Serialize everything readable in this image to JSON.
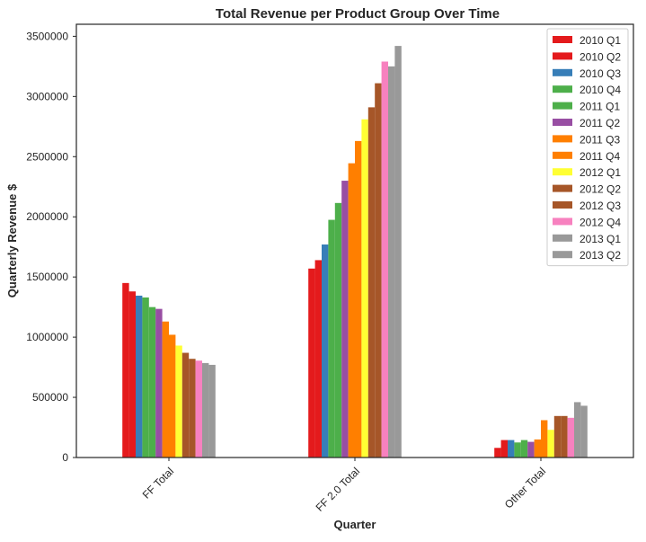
{
  "chart_data": {
    "type": "bar",
    "title": "Total Revenue per Product Group Over Time",
    "xlabel": "Quarter",
    "ylabel": "Quarterly Revenue $",
    "ylim": [
      0,
      3600000
    ],
    "yticks": [
      0,
      500000,
      1000000,
      1500000,
      2000000,
      2500000,
      3000000,
      3500000
    ],
    "yticklabels": [
      "0",
      "500000",
      "1000000",
      "1500000",
      "2000000",
      "2500000",
      "3000000",
      "3500000"
    ],
    "categories": [
      "FF Total",
      "FF 2.0 Total",
      "Other Total"
    ],
    "grid": false,
    "legend_position": "top-right",
    "series": [
      {
        "name": "2010 Q1",
        "color": "#e41a1c",
        "values": [
          1450000,
          1570000,
          80000
        ]
      },
      {
        "name": "2010 Q2",
        "color": "#e41a1c",
        "values": [
          1380000,
          1640000,
          145000
        ]
      },
      {
        "name": "2010 Q3",
        "color": "#377eb8",
        "values": [
          1345000,
          1770000,
          145000
        ]
      },
      {
        "name": "2010 Q4",
        "color": "#4daf4a",
        "values": [
          1330000,
          1975000,
          125000
        ]
      },
      {
        "name": "2011 Q1",
        "color": "#4daf4a",
        "values": [
          1250000,
          2115000,
          145000
        ]
      },
      {
        "name": "2011 Q2",
        "color": "#984ea3",
        "values": [
          1235000,
          2300000,
          130000
        ]
      },
      {
        "name": "2011 Q3",
        "color": "#ff7f00",
        "values": [
          1130000,
          2445000,
          150000
        ]
      },
      {
        "name": "2011 Q4",
        "color": "#ff7f00",
        "values": [
          1020000,
          2630000,
          310000
        ]
      },
      {
        "name": "2012 Q1",
        "color": "#ffff33",
        "values": [
          930000,
          2810000,
          230000
        ]
      },
      {
        "name": "2012 Q2",
        "color": "#a65628",
        "values": [
          870000,
          2910000,
          345000
        ]
      },
      {
        "name": "2012 Q3",
        "color": "#a65628",
        "values": [
          820000,
          3110000,
          345000
        ]
      },
      {
        "name": "2012 Q4",
        "color": "#f781bf",
        "values": [
          805000,
          3290000,
          330000
        ]
      },
      {
        "name": "2013 Q1",
        "color": "#999999",
        "values": [
          785000,
          3250000,
          460000
        ]
      },
      {
        "name": "2013 Q2",
        "color": "#999999",
        "values": [
          770000,
          3420000,
          430000
        ]
      }
    ]
  }
}
